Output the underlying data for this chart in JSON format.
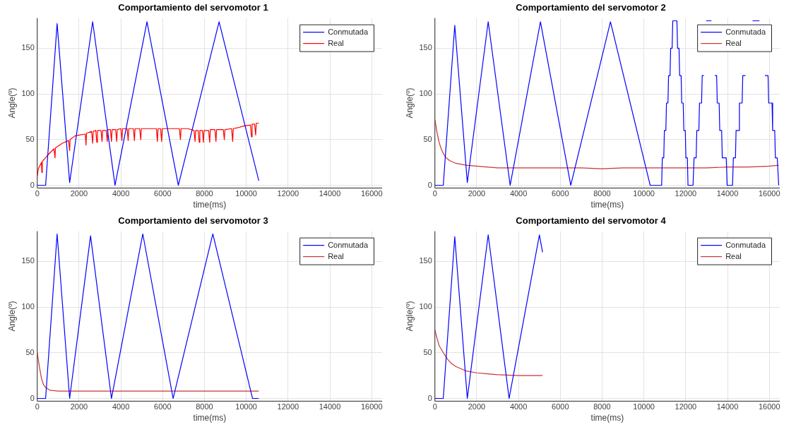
{
  "chart_data": [
    {
      "type": "line",
      "title": "Comportamiento del servomotor 1",
      "xlabel": "time(ms)",
      "ylabel": "Angle(º)",
      "xlim": [
        0,
        16500
      ],
      "xticks": [
        0,
        2000,
        4000,
        6000,
        8000,
        10000,
        12000,
        14000,
        16000
      ],
      "ylim": [
        -3,
        183
      ],
      "yticks": [
        0,
        50,
        100,
        150
      ],
      "grid": true,
      "legend": "top right",
      "series": [
        {
          "name": "Conmutada",
          "color": "#0000ff",
          "x": [
            0,
            400,
            950,
            1550,
            2650,
            3720,
            5250,
            6750,
            8700,
            10600
          ],
          "values": [
            0,
            0,
            177,
            3,
            179,
            0,
            179,
            0,
            179,
            5
          ]
        },
        {
          "name": "Real",
          "color": "#ff0000",
          "x": [
            0,
            50,
            200,
            220,
            240,
            500,
            800,
            850,
            870,
            1200,
            1500,
            1550,
            1570,
            1800,
            2000,
            2300,
            2330,
            2360,
            2600,
            2650,
            2680,
            2800,
            2850,
            2880,
            3050,
            3100,
            3130,
            3300,
            3350,
            3380,
            3500,
            3550,
            3580,
            3750,
            3800,
            3830,
            4000,
            4050,
            4080,
            4300,
            4350,
            4380,
            4600,
            4650,
            4680,
            4900,
            4950,
            4980,
            5200,
            5700,
            5750,
            5780,
            5900,
            5950,
            5980,
            6400,
            6800,
            6850,
            6880,
            7200,
            7500,
            7550,
            7580,
            7700,
            7750,
            7780,
            7900,
            7950,
            7980,
            8200,
            8250,
            8280,
            8500,
            8550,
            8580,
            8900,
            8950,
            8980,
            9300,
            9350,
            9380,
            9600,
            9900,
            10200,
            10250,
            10280,
            10400,
            10450,
            10480,
            10600
          ],
          "values": [
            10,
            18,
            25,
            14,
            26,
            33,
            40,
            30,
            41,
            46,
            49,
            38,
            50,
            54,
            55,
            56,
            44,
            57,
            59,
            46,
            59,
            60,
            47,
            60,
            60,
            48,
            60,
            60,
            48,
            61,
            61,
            48,
            61,
            61,
            48,
            61,
            62,
            49,
            62,
            62,
            49,
            62,
            62,
            49,
            62,
            62,
            50,
            62,
            62,
            62,
            48,
            62,
            62,
            48,
            62,
            62,
            62,
            50,
            62,
            62,
            60,
            48,
            60,
            60,
            47,
            60,
            60,
            47,
            60,
            60,
            47,
            61,
            61,
            48,
            61,
            61,
            50,
            61,
            62,
            48,
            62,
            63,
            65,
            66,
            53,
            67,
            67,
            55,
            68,
            68
          ]
        }
      ]
    },
    {
      "type": "line",
      "title": "Comportamiento del servomotor 2",
      "xlabel": "time(ms)",
      "ylabel": "Angle(º)",
      "xlim": [
        0,
        16500
      ],
      "xticks": [
        0,
        2000,
        4000,
        6000,
        8000,
        10000,
        12000,
        14000,
        16000
      ],
      "ylim": [
        -3,
        183
      ],
      "yticks": [
        0,
        50,
        100,
        150
      ],
      "grid": true,
      "legend": "top right",
      "series": [
        {
          "name": "Conmutada",
          "color": "#0000ff",
          "x": [
            0,
            400,
            950,
            1550,
            2550,
            3600,
            5050,
            6500,
            8400,
            10300,
            10850,
            10880,
            10950,
            10980,
            11050,
            11080,
            11150,
            11180,
            11250,
            11280,
            11350,
            11380,
            11580,
            11610,
            11680,
            11710,
            11780,
            11810,
            11880,
            11910,
            11980,
            12010,
            12080,
            12110,
            12350,
            12400,
            12500,
            12530,
            12630,
            12660,
            12760,
            12790,
            12870,
            12900,
            12950,
            12980,
            13230,
            13260,
            13360,
            13390,
            13480,
            13510,
            13600,
            13630,
            13720,
            13750,
            13940,
            13980,
            14240,
            14280,
            14380,
            14410,
            14540,
            14570,
            14700,
            14730,
            14860,
            14890,
            15150,
            15200,
            15530,
            15560,
            15760,
            15790,
            15940,
            15970,
            16130,
            16160,
            16260,
            16290,
            16380,
            16450
          ],
          "values": [
            0,
            0,
            175,
            3,
            179,
            0,
            179,
            0,
            179,
            0,
            0,
            30,
            30,
            60,
            60,
            90,
            90,
            120,
            120,
            150,
            150,
            180,
            180,
            150,
            150,
            120,
            120,
            90,
            90,
            60,
            60,
            30,
            30,
            0,
            0,
            30,
            30,
            60,
            60,
            90,
            90,
            120,
            120,
            null,
            null,
            180,
            180,
            null,
            null,
            120,
            120,
            90,
            90,
            60,
            60,
            30,
            30,
            0,
            0,
            30,
            30,
            60,
            60,
            90,
            90,
            120,
            120,
            null,
            null,
            180,
            180,
            null,
            null,
            120,
            120,
            90,
            90,
            60,
            60,
            30,
            30,
            0
          ]
        },
        {
          "name": "Real",
          "color": "#cc3333",
          "x": [
            0,
            100,
            200,
            300,
            400,
            500,
            700,
            1000,
            1500,
            2000,
            3000,
            4000,
            5000,
            6000,
            7000,
            8000,
            9000,
            10000,
            11000,
            12000,
            13000,
            14000,
            15000,
            16000,
            16450
          ],
          "values": [
            72,
            58,
            47,
            40,
            35,
            31,
            27,
            24,
            22,
            21,
            19,
            19,
            19,
            19,
            19,
            18,
            19,
            19,
            19,
            19,
            19,
            20,
            20,
            21,
            22
          ]
        }
      ]
    },
    {
      "type": "line",
      "title": "Comportamiento del servomotor 3",
      "xlabel": "time(ms)",
      "ylabel": "Angle(º)",
      "xlim": [
        0,
        16500
      ],
      "xticks": [
        0,
        2000,
        4000,
        6000,
        8000,
        10000,
        12000,
        14000,
        16000
      ],
      "ylim": [
        -3,
        183
      ],
      "yticks": [
        0,
        50,
        100,
        150
      ],
      "grid": true,
      "legend": "top right",
      "series": [
        {
          "name": "Conmutada",
          "color": "#0000ff",
          "x": [
            0,
            400,
            950,
            1550,
            2550,
            3550,
            5050,
            6500,
            8400,
            10300,
            10600
          ],
          "values": [
            0,
            0,
            180,
            0,
            178,
            0,
            180,
            0,
            180,
            0,
            0
          ]
        },
        {
          "name": "Real",
          "color": "#cc3333",
          "x": [
            0,
            100,
            200,
            300,
            400,
            600,
            1000,
            2000,
            4000,
            6000,
            8000,
            10000,
            10600
          ],
          "values": [
            50,
            35,
            22,
            15,
            12,
            9,
            8,
            8,
            8,
            8,
            8,
            8,
            8
          ]
        }
      ]
    },
    {
      "type": "line",
      "title": "Comportamiento del servomotor 4",
      "xlabel": "time(ms)",
      "ylabel": "Angle(º)",
      "xlim": [
        0,
        16500
      ],
      "xticks": [
        0,
        2000,
        4000,
        6000,
        8000,
        10000,
        12000,
        14000,
        16000
      ],
      "ylim": [
        -3,
        183
      ],
      "yticks": [
        0,
        50,
        100,
        150
      ],
      "grid": true,
      "legend": "top right",
      "series": [
        {
          "name": "Conmutada",
          "color": "#0000ff",
          "x": [
            0,
            400,
            950,
            1550,
            2550,
            3550,
            5000,
            5150
          ],
          "values": [
            0,
            0,
            177,
            0,
            179,
            0,
            179,
            160
          ]
        },
        {
          "name": "Real",
          "color": "#cc3333",
          "x": [
            0,
            100,
            200,
            400,
            600,
            800,
            1000,
            1500,
            2000,
            2500,
            3000,
            4000,
            5150
          ],
          "values": [
            75,
            66,
            58,
            50,
            43,
            38,
            35,
            30,
            28,
            27,
            26,
            25,
            25
          ]
        }
      ]
    }
  ]
}
